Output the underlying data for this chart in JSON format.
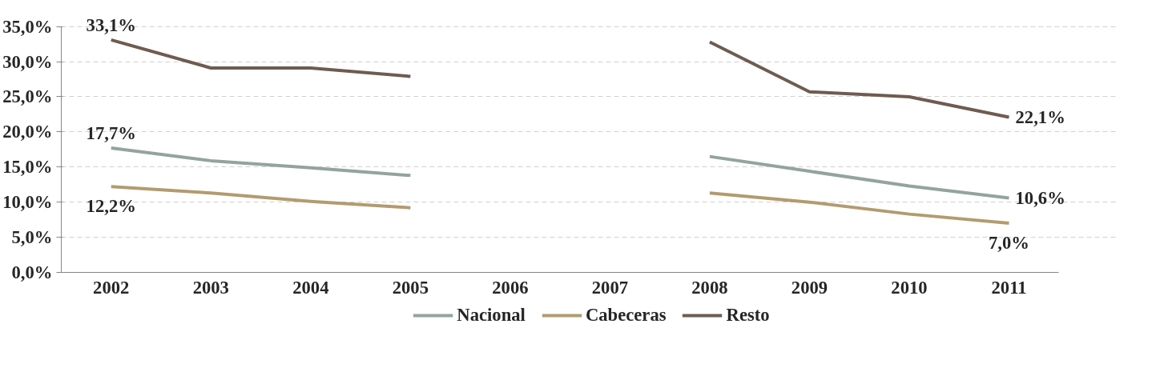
{
  "chart_data": {
    "type": "line",
    "categories": [
      "2002",
      "2003",
      "2004",
      "2005",
      "2006",
      "2007",
      "2008",
      "2009",
      "2010",
      "2011"
    ],
    "series": [
      {
        "name": "Nacional",
        "color": "#93a49b",
        "values": [
          17.7,
          15.9,
          14.9,
          13.8,
          null,
          null,
          16.5,
          14.4,
          12.3,
          10.6
        ],
        "value_labels": [
          "17,7%",
          null,
          null,
          null,
          null,
          null,
          null,
          null,
          null,
          "10,6%"
        ]
      },
      {
        "name": "Cabeceras",
        "color": "#b39b6f",
        "values": [
          12.2,
          11.3,
          10.1,
          9.2,
          null,
          null,
          11.3,
          10.0,
          8.3,
          7.0
        ],
        "value_labels": [
          "12,2%",
          null,
          null,
          null,
          null,
          null,
          null,
          null,
          null,
          "7,0%"
        ]
      },
      {
        "name": "Resto",
        "color": "#6f5b50",
        "values": [
          33.1,
          29.1,
          29.1,
          27.9,
          null,
          null,
          32.8,
          25.7,
          25.0,
          22.1
        ],
        "value_labels": [
          "33,1%",
          null,
          null,
          null,
          null,
          null,
          null,
          null,
          null,
          "22,1%"
        ]
      }
    ],
    "ylim": [
      0,
      35
    ],
    "yticks": [
      {
        "value": 0,
        "label": "0,0%"
      },
      {
        "value": 5,
        "label": "5,0%"
      },
      {
        "value": 10,
        "label": "10,0%"
      },
      {
        "value": 15,
        "label": "15,0%"
      },
      {
        "value": 20,
        "label": "20,0%"
      },
      {
        "value": 25,
        "label": "25,0%"
      },
      {
        "value": 30,
        "label": "30,0%"
      },
      {
        "value": 35,
        "label": "35,0%"
      }
    ],
    "grid": "y",
    "legend": "bottom",
    "marker": "none",
    "line_style": "solid"
  }
}
